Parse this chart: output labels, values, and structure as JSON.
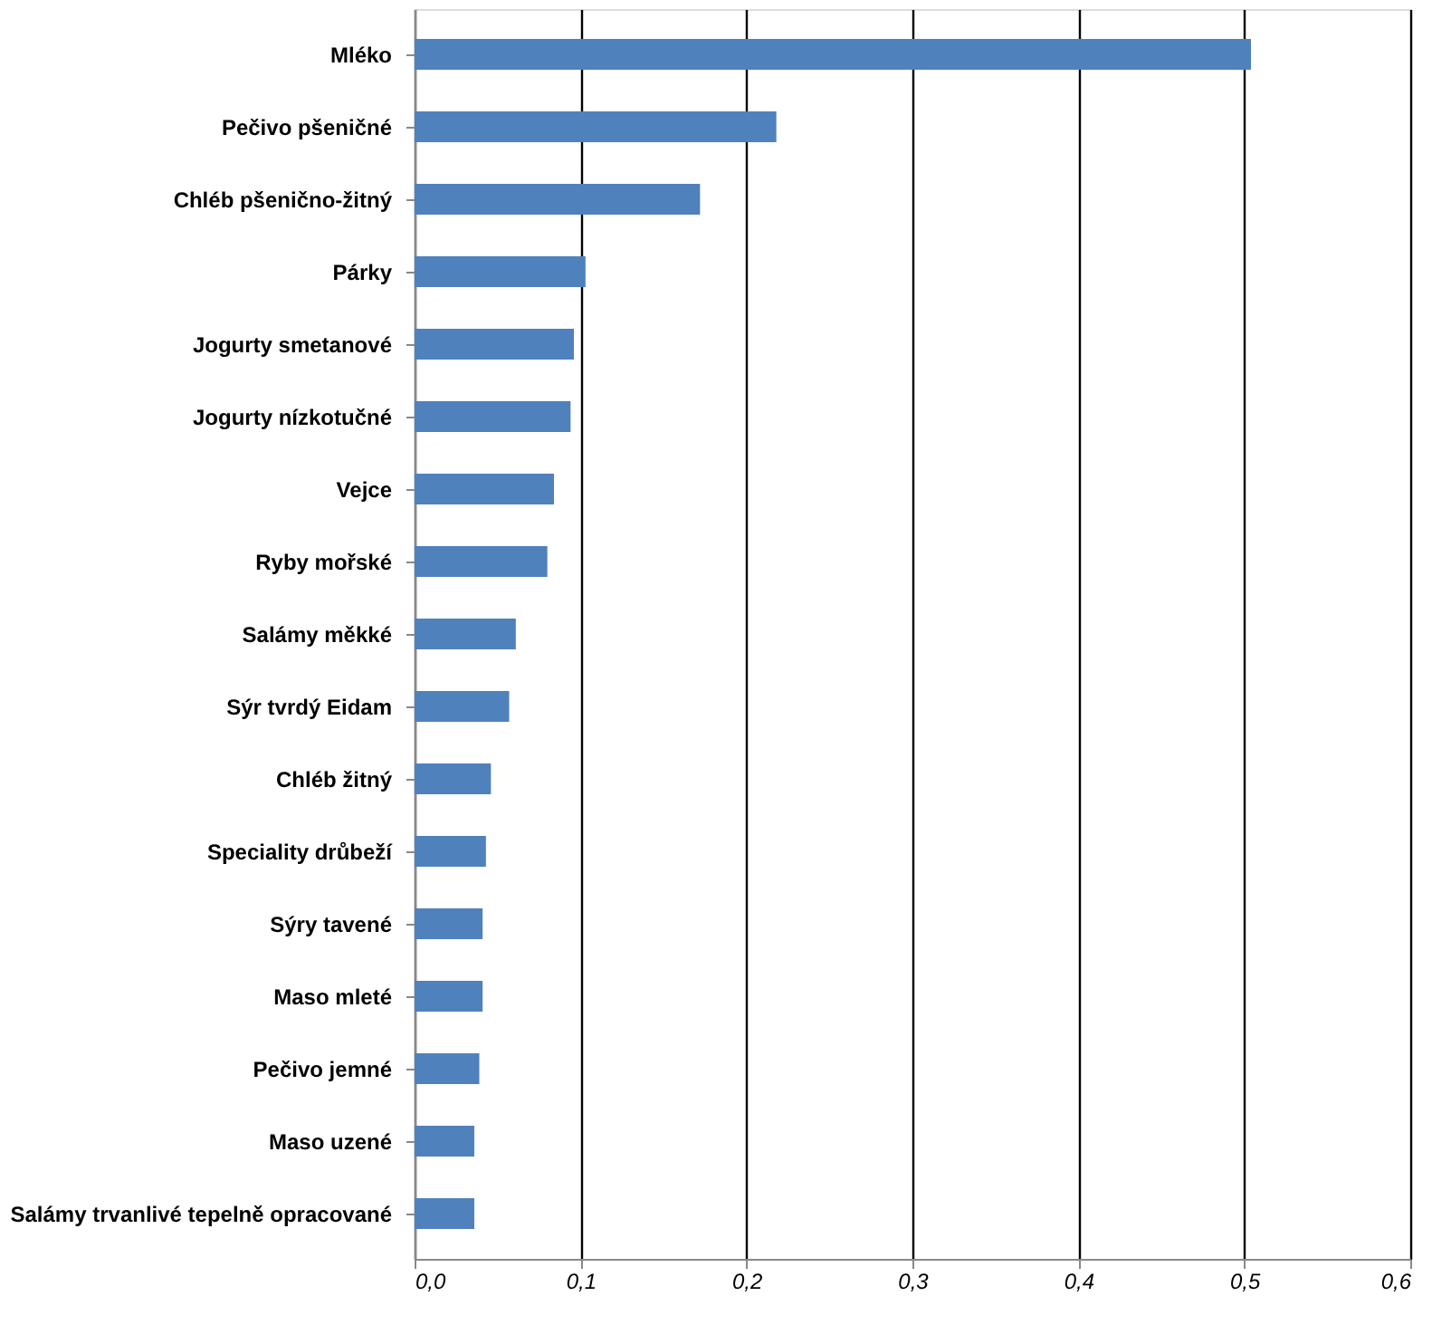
{
  "chart_data": {
    "type": "bar",
    "orientation": "horizontal",
    "categories": [
      "Mléko",
      "Pečivo pšeničné",
      "Chléb pšenično-žitný",
      "Párky",
      "Jogurty smetanové",
      "Jogurty nízkotučné",
      "Vejce",
      "Ryby mořské",
      "Salámy měkké",
      "Sýr tvrdý Eidam",
      "Chléb žitný",
      "Speciality drůbeží",
      "Sýry tavené",
      "Maso mleté",
      "Pečivo jemné",
      "Maso uzené",
      "Salámy trvanlivé tepelně opracované"
    ],
    "values": [
      0.504,
      0.218,
      0.172,
      0.103,
      0.096,
      0.094,
      0.084,
      0.08,
      0.061,
      0.057,
      0.046,
      0.043,
      0.041,
      0.041,
      0.039,
      0.036,
      0.036
    ],
    "color": "#4f81bd",
    "xlim": [
      0,
      0.6
    ],
    "xticks": [
      {
        "value": 0,
        "label": "0,0"
      },
      {
        "value": 0.1,
        "label": "0,1"
      },
      {
        "value": 0.2,
        "label": "0,2"
      },
      {
        "value": 0.3,
        "label": "0,3"
      },
      {
        "value": 0.4,
        "label": "0,4"
      },
      {
        "value": 0.5,
        "label": "0,5"
      },
      {
        "value": 0.6,
        "label": "0,6"
      }
    ],
    "grid": "x"
  }
}
